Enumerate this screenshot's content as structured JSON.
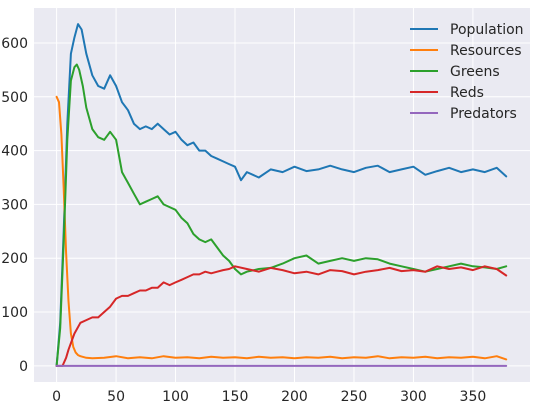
{
  "chart_data": {
    "type": "line",
    "title": "",
    "xlabel": "",
    "ylabel": "",
    "xlim": [
      -19,
      398
    ],
    "ylim": [
      -30,
      665
    ],
    "xticks": [
      0,
      50,
      100,
      150,
      200,
      250,
      300,
      350
    ],
    "yticks": [
      0,
      100,
      200,
      300,
      400,
      500,
      600
    ],
    "grid": true,
    "background": "#eaeaf2",
    "legend_position": "top-right",
    "series": [
      {
        "name": "Population",
        "color": "#1f77b4",
        "x": [
          0,
          3,
          6,
          9,
          12,
          15,
          18,
          21,
          25,
          30,
          35,
          40,
          45,
          50,
          55,
          60,
          65,
          70,
          75,
          80,
          85,
          90,
          95,
          100,
          105,
          110,
          115,
          120,
          125,
          130,
          135,
          140,
          145,
          150,
          155,
          160,
          170,
          180,
          190,
          200,
          210,
          220,
          230,
          240,
          250,
          260,
          270,
          280,
          290,
          300,
          310,
          320,
          330,
          340,
          350,
          360,
          370,
          378
        ],
        "y": [
          0,
          80,
          250,
          450,
          580,
          610,
          635,
          625,
          580,
          540,
          520,
          515,
          540,
          520,
          490,
          475,
          450,
          440,
          445,
          440,
          450,
          440,
          430,
          435,
          420,
          410,
          415,
          400,
          400,
          390,
          385,
          380,
          375,
          370,
          345,
          360,
          350,
          365,
          360,
          370,
          362,
          365,
          372,
          365,
          360,
          368,
          372,
          360,
          365,
          370,
          355,
          362,
          368,
          360,
          365,
          360,
          368,
          352
        ]
      },
      {
        "name": "Resources",
        "color": "#ff7f0e",
        "x": [
          0,
          2,
          4,
          6,
          8,
          10,
          12,
          14,
          16,
          18,
          20,
          25,
          30,
          40,
          50,
          60,
          70,
          80,
          90,
          100,
          110,
          120,
          130,
          140,
          150,
          160,
          170,
          180,
          190,
          200,
          210,
          220,
          230,
          240,
          250,
          260,
          270,
          280,
          290,
          300,
          310,
          320,
          330,
          340,
          350,
          360,
          370,
          378
        ],
        "y": [
          500,
          490,
          430,
          330,
          210,
          120,
          60,
          35,
          25,
          20,
          18,
          15,
          14,
          15,
          18,
          14,
          16,
          14,
          18,
          15,
          16,
          14,
          17,
          15,
          16,
          14,
          17,
          15,
          16,
          14,
          16,
          15,
          17,
          14,
          16,
          15,
          18,
          14,
          16,
          15,
          17,
          14,
          16,
          15,
          17,
          14,
          18,
          12
        ]
      },
      {
        "name": "Greens",
        "color": "#2ca02c",
        "x": [
          0,
          3,
          6,
          9,
          12,
          15,
          17,
          19,
          22,
          25,
          30,
          35,
          40,
          45,
          50,
          55,
          60,
          65,
          70,
          75,
          80,
          85,
          90,
          95,
          100,
          105,
          110,
          115,
          120,
          125,
          130,
          135,
          140,
          145,
          150,
          155,
          160,
          170,
          180,
          190,
          200,
          210,
          220,
          230,
          240,
          250,
          260,
          270,
          280,
          290,
          300,
          310,
          320,
          330,
          340,
          350,
          360,
          370,
          378
        ],
        "y": [
          0,
          70,
          230,
          420,
          530,
          555,
          560,
          550,
          520,
          480,
          440,
          425,
          420,
          435,
          420,
          360,
          340,
          320,
          300,
          305,
          310,
          315,
          300,
          295,
          290,
          275,
          265,
          245,
          235,
          230,
          235,
          220,
          205,
          195,
          180,
          170,
          175,
          180,
          182,
          190,
          200,
          205,
          190,
          195,
          200,
          195,
          200,
          198,
          190,
          185,
          180,
          175,
          180,
          185,
          190,
          185,
          183,
          180,
          185
        ]
      },
      {
        "name": "Reds",
        "color": "#d62728",
        "x": [
          0,
          5,
          8,
          10,
          15,
          20,
          25,
          30,
          35,
          40,
          45,
          50,
          55,
          60,
          65,
          70,
          75,
          80,
          85,
          90,
          95,
          100,
          105,
          110,
          115,
          120,
          125,
          130,
          135,
          140,
          145,
          150,
          160,
          170,
          180,
          190,
          200,
          210,
          220,
          230,
          240,
          250,
          260,
          270,
          280,
          290,
          300,
          310,
          320,
          330,
          340,
          350,
          360,
          370,
          378
        ],
        "y": [
          0,
          0,
          15,
          30,
          60,
          80,
          85,
          90,
          90,
          100,
          110,
          125,
          130,
          130,
          135,
          140,
          140,
          145,
          145,
          155,
          150,
          155,
          160,
          165,
          170,
          170,
          175,
          172,
          175,
          178,
          180,
          185,
          180,
          175,
          182,
          178,
          172,
          175,
          170,
          178,
          176,
          170,
          175,
          178,
          182,
          176,
          178,
          175,
          185,
          180,
          183,
          178,
          185,
          180,
          168
        ]
      },
      {
        "name": "Predators",
        "color": "#9467bd",
        "x": [
          0,
          378
        ],
        "y": [
          0,
          0
        ]
      }
    ]
  }
}
